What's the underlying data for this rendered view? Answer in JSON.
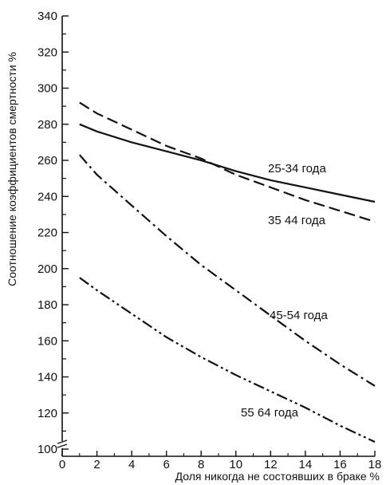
{
  "chart_data": {
    "type": "line",
    "title": "",
    "xlabel": "Доля никогда не состоявших в браке %",
    "ylabel": "Соотношение коэффициентов смертности %",
    "xlim": [
      0,
      18
    ],
    "ylim": [
      100,
      340
    ],
    "x_ticks": [
      "0",
      "2",
      "4",
      "6",
      "8",
      "10",
      "12",
      "14",
      "16",
      "18"
    ],
    "y_ticks": [
      "100",
      "120",
      "140",
      "160",
      "180",
      "200",
      "220",
      "240",
      "260",
      "280",
      "300",
      "320",
      "340"
    ],
    "axis_break": true,
    "grid": false,
    "colors": {
      "ink": "#111111"
    },
    "series": [
      {
        "name": "25-34 года",
        "dash": "solid",
        "x": [
          1,
          2,
          4,
          6,
          8,
          10,
          12,
          14,
          16,
          18
        ],
        "y": [
          280,
          276,
          270,
          265,
          260,
          254,
          249,
          245,
          241,
          237
        ]
      },
      {
        "name": "35 44 года",
        "dash": "dashed",
        "x": [
          1,
          2,
          4,
          6,
          8,
          10,
          12,
          14,
          16,
          18
        ],
        "y": [
          292,
          286,
          277,
          268,
          261,
          252,
          245,
          238,
          232,
          226
        ]
      },
      {
        "name": "45-54 года",
        "dash": "dashdot",
        "x": [
          1,
          2,
          4,
          6,
          8,
          10,
          12,
          14,
          16,
          18
        ],
        "y": [
          263,
          252,
          235,
          218,
          202,
          188,
          174,
          160,
          147,
          135
        ]
      },
      {
        "name": "55 64 года",
        "dash": "dashdotdot",
        "x": [
          1,
          2,
          4,
          6,
          8,
          10,
          12,
          14,
          16,
          18
        ],
        "y": [
          195,
          188,
          175,
          162,
          151,
          141,
          132,
          123,
          113,
          104
        ]
      }
    ]
  }
}
